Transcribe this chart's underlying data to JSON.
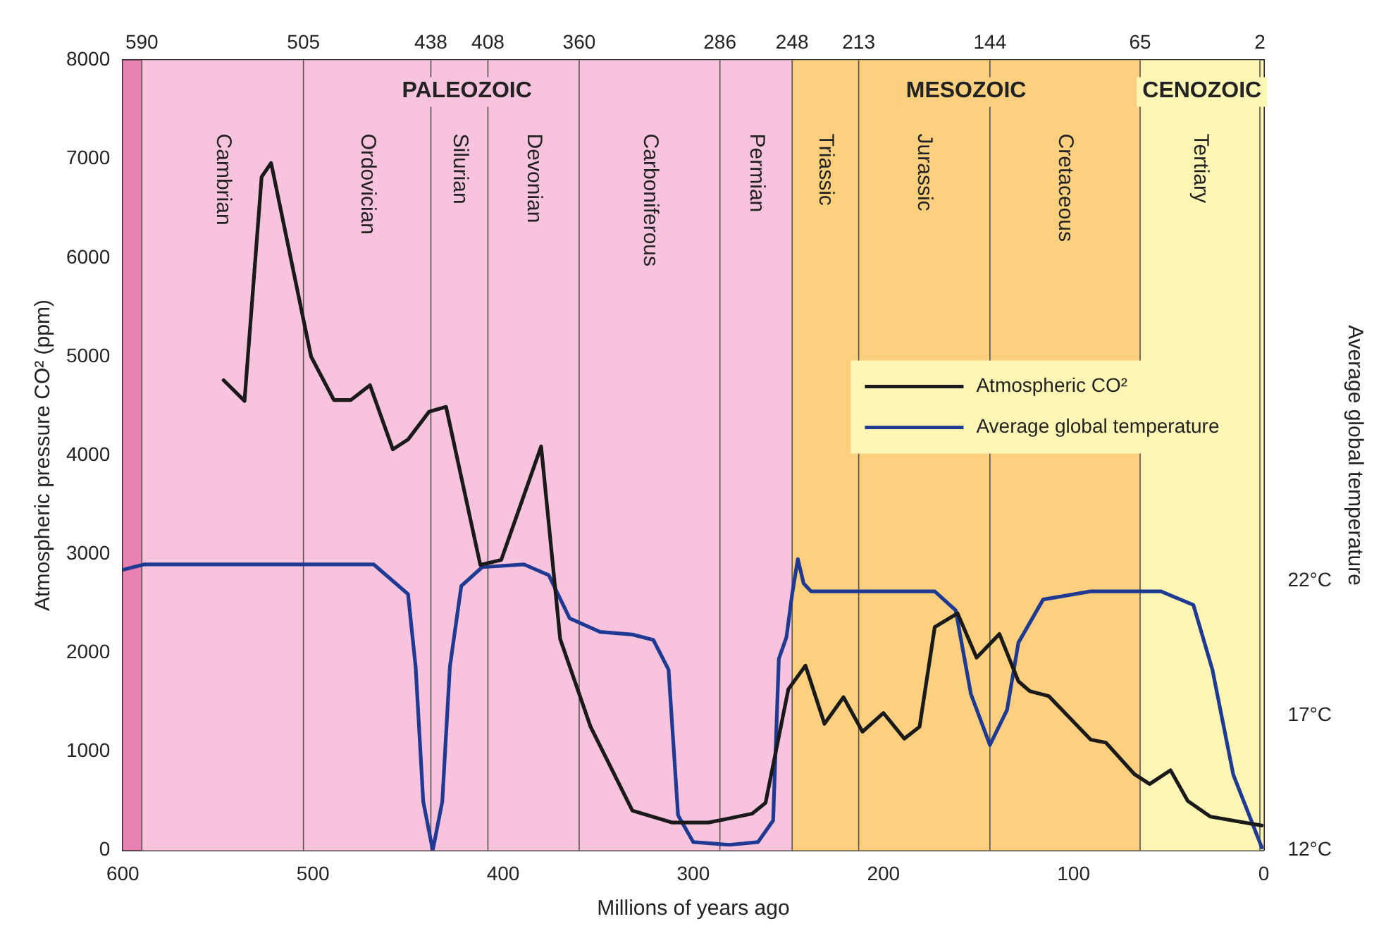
{
  "chart_data": {
    "type": "line",
    "xlabel": "Millions of years ago",
    "ylabel": "Atmospheric pressure CO² (ppm)",
    "y2label": "Average global temperature",
    "xlim": [
      600,
      0
    ],
    "xticks": [
      600,
      500,
      400,
      300,
      200,
      100,
      0
    ],
    "x2lim": [
      600,
      0
    ],
    "x2ticks": [
      590,
      505,
      438,
      408,
      360,
      286,
      248,
      213,
      144,
      65,
      2
    ],
    "ylim": [
      0,
      8000
    ],
    "yticks": [
      0,
      1000,
      2000,
      3000,
      4000,
      5000,
      6000,
      7000,
      8000
    ],
    "y2lim": [
      12,
      41.3
    ],
    "y2ticks": [
      {
        "value": 12,
        "label": "12°C"
      },
      {
        "value": 17,
        "label": "17°C"
      },
      {
        "value": 22,
        "label": "22°C"
      }
    ],
    "grid": "x",
    "legend": "right",
    "series": [
      {
        "name": "Atmospheric CO²",
        "color": "#1a1a1a",
        "x": [
          547,
          536,
          527,
          522,
          501,
          489,
          480,
          470,
          458,
          450,
          439,
          430,
          412,
          401,
          380,
          370,
          354,
          332,
          311,
          292,
          269,
          262,
          250,
          241,
          231,
          221,
          211,
          200,
          189,
          181,
          173,
          161,
          151,
          139,
          129,
          123,
          113,
          91,
          83,
          68,
          60,
          49,
          40,
          28,
          1
        ],
        "values": [
          4760,
          4550,
          6820,
          6960,
          5000,
          4560,
          4560,
          4710,
          4060,
          4160,
          4440,
          4490,
          2890,
          2940,
          4090,
          2140,
          1250,
          400,
          280,
          280,
          370,
          480,
          1630,
          1870,
          1280,
          1550,
          1200,
          1390,
          1130,
          1250,
          2260,
          2400,
          1950,
          2190,
          1710,
          1610,
          1560,
          1120,
          1090,
          770,
          670,
          810,
          500,
          340,
          250
        ]
      },
      {
        "name": "Average global temperature",
        "color": "#1f3a93",
        "axis": "y2",
        "x": [
          600,
          589,
          468,
          450,
          446,
          442,
          437,
          432,
          428,
          422,
          411,
          389,
          376,
          365,
          349,
          332,
          321,
          313,
          308,
          300,
          281,
          266,
          258,
          255,
          251,
          248,
          245,
          242,
          238,
          173,
          162,
          154,
          144,
          135,
          129,
          116,
          91,
          54,
          37,
          27,
          16,
          1
        ],
        "values": [
          22.4,
          22.6,
          22.6,
          21.5,
          18.8,
          13.8,
          12.0,
          13.8,
          18.8,
          21.8,
          22.5,
          22.6,
          22.2,
          20.6,
          20.1,
          20.0,
          19.8,
          18.7,
          13.3,
          12.3,
          12.2,
          12.3,
          13.1,
          19.1,
          19.9,
          21.5,
          22.8,
          21.9,
          21.6,
          21.6,
          20.9,
          17.8,
          15.9,
          17.2,
          19.7,
          21.3,
          21.6,
          21.6,
          21.1,
          18.7,
          14.8,
          12.1
        ]
      }
    ],
    "bands": [
      {
        "axis": "x",
        "from": 600,
        "to": 590,
        "color": "#e981b2"
      },
      {
        "axis": "x",
        "from": 590,
        "to": 248,
        "label": "PALEOZOIC",
        "color": "#f8c3dc"
      },
      {
        "axis": "x",
        "from": 248,
        "to": 65,
        "label": "MESOZOIC",
        "color": "#fcd07e"
      },
      {
        "axis": "x",
        "from": 65,
        "to": 0,
        "label": "CENOZOIC",
        "color": "#fff6b6"
      },
      {
        "axis": "x",
        "from": 590,
        "to": 505,
        "label": "Cambrian",
        "color": "#f8c3dc"
      },
      {
        "axis": "x",
        "from": 505,
        "to": 438,
        "label": "Ordovician",
        "color": "#f8c3dc"
      },
      {
        "axis": "x",
        "from": 438,
        "to": 408,
        "label": "Silurian",
        "color": "#f8c3dc"
      },
      {
        "axis": "x",
        "from": 408,
        "to": 360,
        "label": "Devonian",
        "color": "#f8c3dc"
      },
      {
        "axis": "x",
        "from": 360,
        "to": 286,
        "label": "Carboniferous",
        "color": "#f8c3dc"
      },
      {
        "axis": "x",
        "from": 286,
        "to": 248,
        "label": "Permian",
        "color": "#f8c3dc"
      },
      {
        "axis": "x",
        "from": 248,
        "to": 213,
        "label": "Triassic",
        "color": "#fcd07e"
      },
      {
        "axis": "x",
        "from": 213,
        "to": 144,
        "label": "Jurassic",
        "color": "#fcd07e"
      },
      {
        "axis": "x",
        "from": 144,
        "to": 65,
        "label": "Cretaceous",
        "color": "#fcd07e"
      },
      {
        "axis": "x",
        "from": 65,
        "to": 2,
        "label": "Tertiary",
        "color": "#fff6b6"
      }
    ]
  }
}
